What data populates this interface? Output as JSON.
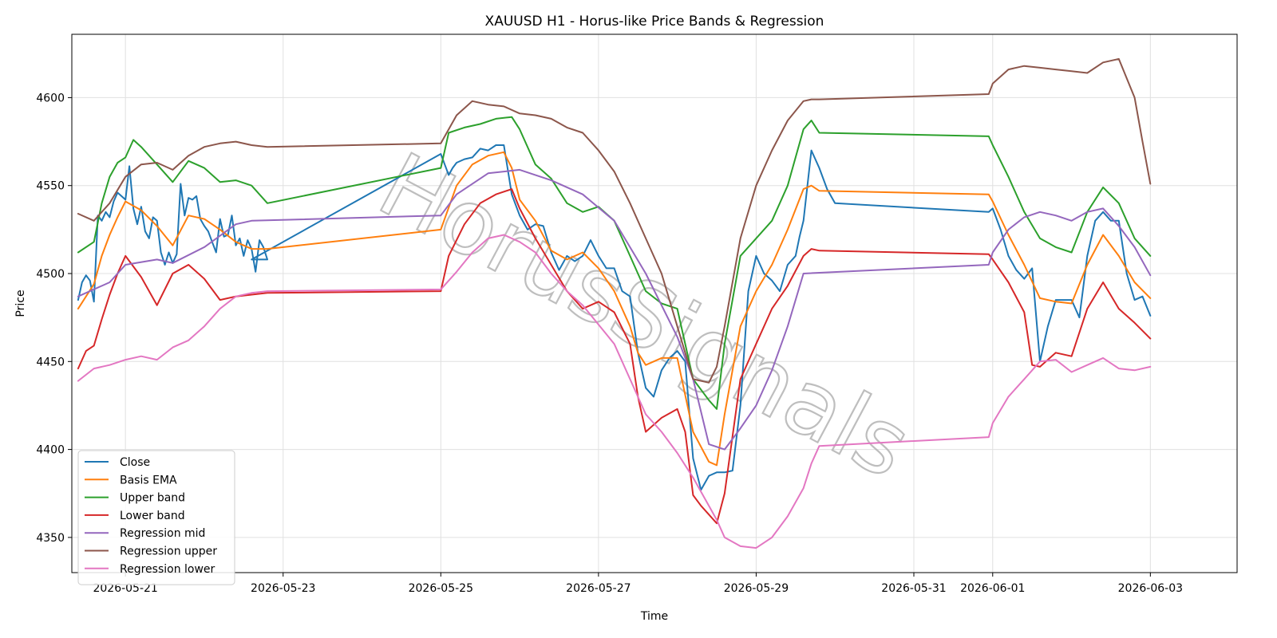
{
  "chart_data": {
    "type": "line",
    "title": "XAUUSD H1 - Horus-like Price Bands & Regression",
    "xlabel": "Time",
    "ylabel": "Price",
    "watermark": "HorusSignals",
    "grid": true,
    "legend_position": "bottom-left",
    "xlim": [
      -0.68,
      14.1
    ],
    "ylim": [
      4330,
      4636
    ],
    "x_tick_labels": [
      "2026-05-21",
      "2026-05-23",
      "2026-05-25",
      "2026-05-27",
      "2026-05-29",
      "2026-05-31",
      "2026-06-01",
      "2026-06-03"
    ],
    "x_tick_values": [
      0,
      2,
      4,
      6,
      8,
      10,
      11,
      13
    ],
    "y_ticks": [
      4350,
      4400,
      4450,
      4500,
      4550,
      4600
    ],
    "x_unit": "days since 2026-05-21",
    "series": [
      {
        "name": "Close",
        "color": "#1f77b4",
        "x": [
          -0.6,
          -0.55,
          -0.5,
          -0.45,
          -0.4,
          -0.35,
          -0.3,
          -0.25,
          -0.2,
          -0.15,
          -0.1,
          -0.05,
          0,
          0.05,
          0.1,
          0.15,
          0.2,
          0.25,
          0.3,
          0.35,
          0.4,
          0.45,
          0.5,
          0.55,
          0.6,
          0.65,
          0.7,
          0.75,
          0.8,
          0.85,
          0.9,
          0.95,
          1.0,
          1.05,
          1.1,
          1.15,
          1.2,
          1.25,
          1.3,
          1.35,
          1.4,
          1.45,
          1.5,
          1.55,
          1.6,
          1.65,
          1.7,
          1.75,
          1.8,
          1.6,
          4.0,
          4.05,
          4.1,
          4.15,
          4.2,
          4.3,
          4.4,
          4.5,
          4.6,
          4.7,
          4.8,
          4.9,
          5.0,
          5.1,
          5.2,
          5.3,
          5.4,
          5.5,
          5.6,
          5.7,
          5.8,
          5.9,
          6.0,
          6.1,
          6.2,
          6.3,
          6.4,
          6.5,
          6.6,
          6.7,
          6.8,
          6.9,
          7.0,
          7.1,
          7.2,
          7.3,
          7.4,
          7.5,
          7.6,
          7.7,
          7.8,
          7.9,
          8.0,
          8.1,
          8.2,
          8.3,
          8.4,
          8.5,
          8.55,
          8.6,
          8.7,
          8.8,
          8.9,
          9.0,
          10.95,
          11.0,
          11.1,
          11.2,
          11.3,
          11.4,
          11.5,
          11.6,
          11.7,
          11.8,
          11.9,
          12.0,
          12.1,
          12.2,
          12.3,
          12.4,
          12.5,
          12.6,
          12.7,
          12.8,
          12.9,
          13.0
        ],
        "values": [
          4485,
          4495,
          4499,
          4496,
          4484,
          4533,
          4530,
          4535,
          4532,
          4541,
          4546,
          4544,
          4542,
          4561,
          4537,
          4528,
          4538,
          4524,
          4520,
          4532,
          4530,
          4512,
          4505,
          4512,
          4506,
          4511,
          4551,
          4533,
          4543,
          4542,
          4544,
          4531,
          4527,
          4524,
          4518,
          4512,
          4531,
          4521,
          4522,
          4533,
          4516,
          4520,
          4510,
          4519,
          4514,
          4501,
          4519,
          4515,
          4508,
          4508,
          4568,
          4562,
          4556,
          4560,
          4563,
          4565,
          4566,
          4571,
          4570,
          4573,
          4573,
          4545,
          4533,
          4525,
          4528,
          4527,
          4512,
          4502,
          4510,
          4507,
          4510,
          4519,
          4510,
          4503,
          4503,
          4490,
          4487,
          4455,
          4435,
          4430,
          4445,
          4452,
          4456,
          4450,
          4395,
          4377,
          4385,
          4387,
          4387,
          4388,
          4425,
          4490,
          4510,
          4500,
          4496,
          4490,
          4505,
          4510,
          4521,
          4530,
          4570,
          4560,
          4548,
          4540,
          4535,
          4537,
          4525,
          4510,
          4502,
          4497,
          4503,
          4450,
          4470,
          4485,
          4485,
          4485,
          4475,
          4510,
          4530,
          4535,
          4530,
          4530,
          4500,
          4485,
          4487,
          4476
        ]
      },
      {
        "name": "Basis EMA",
        "color": "#ff7f0e",
        "x": [
          -0.6,
          -0.4,
          -0.3,
          -0.2,
          -0.1,
          0,
          0.2,
          0.4,
          0.6,
          0.8,
          1.0,
          1.2,
          1.4,
          1.6,
          1.8,
          4.0,
          4.2,
          4.4,
          4.6,
          4.8,
          4.9,
          5.0,
          5.2,
          5.4,
          5.6,
          5.8,
          6.0,
          6.2,
          6.4,
          6.5,
          6.6,
          6.8,
          7.0,
          7.2,
          7.4,
          7.5,
          7.6,
          7.8,
          8.0,
          8.2,
          8.4,
          8.6,
          8.7,
          8.8,
          10.95,
          11.0,
          11.2,
          11.4,
          11.6,
          11.8,
          12.0,
          12.2,
          12.4,
          12.6,
          12.8,
          13.0
        ],
        "values": [
          4480,
          4494,
          4510,
          4522,
          4532,
          4541,
          4536,
          4527,
          4516,
          4533,
          4531,
          4525,
          4518,
          4514,
          4514,
          4525,
          4550,
          4562,
          4567,
          4569,
          4560,
          4542,
          4530,
          4513,
          4508,
          4512,
          4503,
          4490,
          4470,
          4455,
          4448,
          4452,
          4452,
          4410,
          4393,
          4391,
          4420,
          4470,
          4490,
          4505,
          4525,
          4548,
          4550,
          4547,
          4545,
          4541,
          4522,
          4505,
          4486,
          4484,
          4483,
          4505,
          4522,
          4510,
          4495,
          4486
        ]
      },
      {
        "name": "Upper band",
        "color": "#2ca02c",
        "x": [
          -0.6,
          -0.4,
          -0.3,
          -0.2,
          -0.1,
          0,
          0.1,
          0.2,
          0.4,
          0.6,
          0.8,
          1.0,
          1.2,
          1.4,
          1.6,
          1.8,
          4.0,
          4.1,
          4.3,
          4.5,
          4.7,
          4.9,
          5.0,
          5.2,
          5.4,
          5.6,
          5.8,
          6.0,
          6.2,
          6.4,
          6.6,
          6.8,
          7.0,
          7.2,
          7.4,
          7.5,
          7.6,
          7.8,
          8.0,
          8.2,
          8.4,
          8.6,
          8.7,
          8.8,
          10.95,
          11.0,
          11.2,
          11.4,
          11.6,
          11.8,
          12.0,
          12.2,
          12.4,
          12.6,
          12.8,
          13.0
        ],
        "values": [
          4512,
          4518,
          4540,
          4555,
          4563,
          4566,
          4576,
          4572,
          4562,
          4552,
          4564,
          4560,
          4552,
          4553,
          4550,
          4540,
          4560,
          4580,
          4583,
          4585,
          4588,
          4589,
          4582,
          4562,
          4554,
          4540,
          4535,
          4538,
          4530,
          4510,
          4490,
          4483,
          4480,
          4440,
          4428,
          4423,
          4460,
          4510,
          4520,
          4530,
          4550,
          4582,
          4587,
          4580,
          4578,
          4573,
          4555,
          4535,
          4520,
          4515,
          4512,
          4535,
          4549,
          4540,
          4520,
          4510
        ]
      },
      {
        "name": "Lower band",
        "color": "#d62728",
        "x": [
          -0.6,
          -0.5,
          -0.4,
          -0.3,
          -0.2,
          -0.1,
          0,
          0.2,
          0.4,
          0.6,
          0.8,
          1.0,
          1.2,
          1.4,
          1.6,
          1.8,
          4.0,
          4.1,
          4.3,
          4.5,
          4.7,
          4.9,
          5.0,
          5.2,
          5.4,
          5.6,
          5.8,
          6.0,
          6.2,
          6.4,
          6.5,
          6.6,
          6.8,
          7.0,
          7.1,
          7.2,
          7.3,
          7.4,
          7.5,
          7.6,
          7.8,
          8.0,
          8.2,
          8.4,
          8.6,
          8.7,
          8.8,
          10.95,
          11.0,
          11.2,
          11.4,
          11.5,
          11.6,
          11.8,
          12.0,
          12.2,
          12.4,
          12.6,
          12.8,
          13.0
        ],
        "values": [
          4446,
          4456,
          4459,
          4474,
          4488,
          4500,
          4510,
          4498,
          4482,
          4500,
          4505,
          4497,
          4485,
          4487,
          4488,
          4489,
          4490,
          4510,
          4528,
          4540,
          4545,
          4548,
          4537,
          4520,
          4505,
          4490,
          4480,
          4484,
          4478,
          4460,
          4430,
          4410,
          4418,
          4423,
          4410,
          4374,
          4368,
          4363,
          4358,
          4375,
          4440,
          4460,
          4480,
          4493,
          4510,
          4514,
          4513,
          4511,
          4508,
          4495,
          4478,
          4448,
          4447,
          4455,
          4453,
          4480,
          4495,
          4480,
          4472,
          4463
        ]
      },
      {
        "name": "Regression mid",
        "color": "#9467bd",
        "x": [
          -0.6,
          -0.2,
          0,
          0.4,
          0.6,
          1.0,
          1.4,
          1.6,
          4.0,
          4.2,
          4.6,
          5.0,
          5.4,
          5.8,
          6.2,
          6.6,
          7.0,
          7.2,
          7.4,
          7.6,
          7.8,
          8.0,
          8.2,
          8.4,
          8.6,
          10.95,
          11.0,
          11.2,
          11.4,
          11.6,
          11.8,
          12.0,
          12.2,
          12.4,
          12.6,
          12.8,
          13.0
        ],
        "values": [
          4487,
          4495,
          4505,
          4508,
          4506,
          4515,
          4528,
          4530,
          4533,
          4545,
          4557,
          4559,
          4553,
          4545,
          4530,
          4500,
          4464,
          4440,
          4403,
          4400,
          4412,
          4425,
          4445,
          4470,
          4500,
          4505,
          4512,
          4525,
          4532,
          4535,
          4533,
          4530,
          4535,
          4537,
          4527,
          4515,
          4499
        ]
      },
      {
        "name": "Regression upper",
        "color": "#8c564b",
        "x": [
          -0.6,
          -0.4,
          -0.2,
          0,
          0.2,
          0.4,
          0.6,
          0.8,
          1.0,
          1.2,
          1.4,
          1.6,
          1.8,
          4.0,
          4.2,
          4.4,
          4.6,
          4.8,
          5.0,
          5.2,
          5.4,
          5.6,
          5.8,
          6.0,
          6.2,
          6.4,
          6.6,
          6.8,
          7.0,
          7.2,
          7.4,
          7.5,
          7.6,
          7.8,
          8.0,
          8.2,
          8.4,
          8.6,
          8.7,
          8.8,
          10.95,
          11.0,
          11.2,
          11.4,
          11.6,
          11.8,
          12.0,
          12.2,
          12.4,
          12.6,
          12.8,
          12.9,
          13.0
        ],
        "values": [
          4534,
          4530,
          4540,
          4555,
          4562,
          4563,
          4559,
          4567,
          4572,
          4574,
          4575,
          4573,
          4572,
          4574,
          4590,
          4598,
          4596,
          4595,
          4591,
          4590,
          4588,
          4583,
          4580,
          4570,
          4558,
          4540,
          4520,
          4500,
          4470,
          4440,
          4438,
          4447,
          4470,
          4520,
          4550,
          4570,
          4587,
          4598,
          4599,
          4599,
          4602,
          4608,
          4616,
          4618,
          4617,
          4616,
          4615,
          4614,
          4620,
          4622,
          4600,
          4575,
          4551
        ]
      },
      {
        "name": "Regression lower",
        "color": "#e377c2",
        "x": [
          -0.6,
          -0.4,
          -0.2,
          0,
          0.2,
          0.4,
          0.6,
          0.8,
          1.0,
          1.2,
          1.4,
          1.6,
          1.8,
          4.0,
          4.2,
          4.4,
          4.6,
          4.8,
          5.0,
          5.2,
          5.4,
          5.6,
          5.8,
          6.0,
          6.2,
          6.4,
          6.6,
          6.8,
          7.0,
          7.2,
          7.4,
          7.5,
          7.6,
          7.8,
          8.0,
          8.2,
          8.4,
          8.6,
          8.7,
          8.8,
          10.95,
          11.0,
          11.2,
          11.4,
          11.6,
          11.8,
          12.0,
          12.2,
          12.4,
          12.6,
          12.8,
          13.0
        ],
        "values": [
          4439,
          4446,
          4448,
          4451,
          4453,
          4451,
          4458,
          4462,
          4470,
          4480,
          4487,
          4489,
          4490,
          4491,
          4501,
          4512,
          4520,
          4522,
          4518,
          4512,
          4500,
          4490,
          4482,
          4471,
          4460,
          4440,
          4420,
          4410,
          4398,
          4384,
          4368,
          4360,
          4350,
          4345,
          4344,
          4350,
          4362,
          4378,
          4392,
          4402,
          4407,
          4415,
          4430,
          4440,
          4450,
          4451,
          4444,
          4448,
          4452,
          4446,
          4445,
          4447
        ]
      }
    ]
  }
}
